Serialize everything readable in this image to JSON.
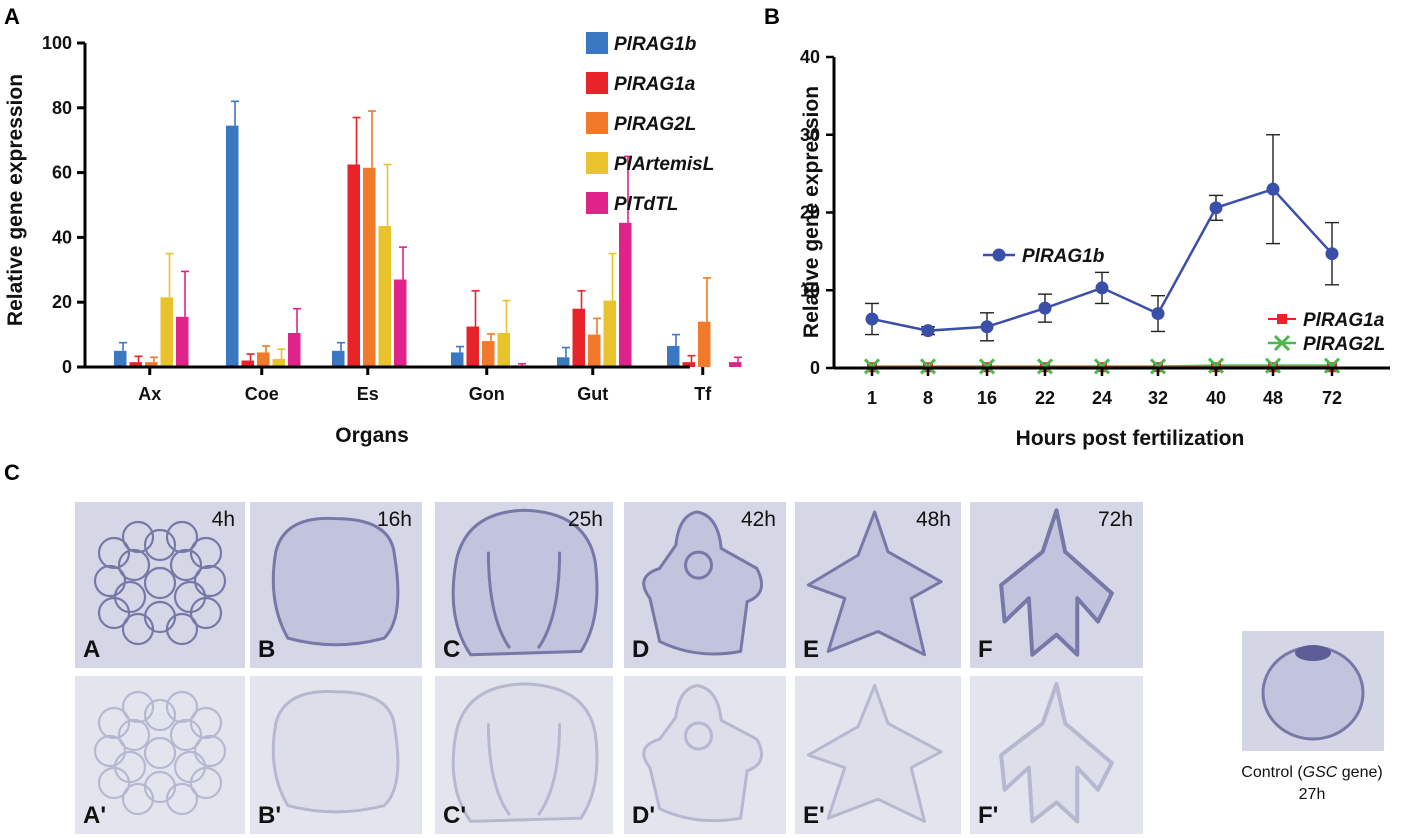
{
  "panels": {
    "A": "A",
    "B": "B",
    "C": "C"
  },
  "colors": {
    "blue": "#3b78c2",
    "red": "#e8232a",
    "orange": "#f07a2a",
    "yellow": "#e8c32c",
    "pink": "#e0238a",
    "lineBlue": "#3a4fa8",
    "green": "#4ab84a",
    "background_tile": "#d8d9e6"
  },
  "chart_data": [
    {
      "id": "A",
      "type": "bar",
      "xlabel": "Organs",
      "ylabel": "Relative gene expression",
      "ylim": [
        0,
        100
      ],
      "yticks": [
        "0",
        "20",
        "40",
        "60",
        "80",
        "100"
      ],
      "categories": [
        "Ax",
        "Coe",
        "Es",
        "Gon",
        "Gut",
        "Tf"
      ],
      "series": [
        {
          "name": "PlRAG1b",
          "color": "#3b78c2",
          "values": [
            5,
            74.5,
            5,
            4.5,
            3,
            6.5
          ],
          "errors": [
            2.5,
            7.5,
            2.5,
            1.8,
            3,
            3.5
          ]
        },
        {
          "name": "PlRAG1a",
          "color": "#e8232a",
          "values": [
            1.5,
            2,
            62.5,
            12.5,
            18,
            1.5
          ],
          "errors": [
            1.8,
            2,
            14.5,
            11,
            5.5,
            2
          ]
        },
        {
          "name": "PlRAG2L",
          "color": "#f07a2a",
          "values": [
            1.5,
            4.5,
            61.5,
            8,
            10,
            14
          ],
          "errors": [
            1.5,
            2,
            17.5,
            2.2,
            5,
            13.5
          ]
        },
        {
          "name": "PlArtemisL",
          "color": "#e8c32c",
          "values": [
            21.5,
            2.5,
            43.5,
            10.5,
            20.5,
            0
          ],
          "errors": [
            13.5,
            3,
            19,
            10,
            14.5,
            0
          ]
        },
        {
          "name": "PlTdTL",
          "color": "#e0238a",
          "values": [
            15.5,
            10.5,
            27,
            0.5,
            44.5,
            1.5
          ],
          "errors": [
            14,
            7.5,
            10,
            0.5,
            20.5,
            1.5
          ]
        }
      ],
      "legend_position": "top-right"
    },
    {
      "id": "B",
      "type": "line",
      "xlabel": "Hours post fertilization",
      "ylabel": "Relative gene expression",
      "ylim": [
        0,
        40
      ],
      "yticks": [
        "0",
        "10",
        "20",
        "30",
        "40"
      ],
      "categories": [
        "1",
        "8",
        "16",
        "22",
        "24",
        "32",
        "40",
        "48",
        "72"
      ],
      "series": [
        {
          "name": "PlRAG1b",
          "color": "#3a4fa8",
          "marker": "circle",
          "values": [
            6.3,
            4.8,
            5.3,
            7.7,
            10.3,
            7,
            20.6,
            23,
            14.7
          ],
          "errors": [
            2,
            0.5,
            1.8,
            1.8,
            2,
            2.3,
            1.6,
            7,
            4
          ]
        },
        {
          "name": "PlRAG1a",
          "color": "#e8232a",
          "marker": "square",
          "values": [
            0.1,
            0.1,
            0.1,
            0.1,
            0.1,
            0.1,
            0.1,
            0.1,
            0.1
          ]
        },
        {
          "name": "PlRAG2L",
          "color": "#4ab84a",
          "marker": "x",
          "values": [
            0.2,
            0.2,
            0.2,
            0.2,
            0.2,
            0.2,
            0.3,
            0.3,
            0.3
          ]
        }
      ]
    }
  ],
  "micrographs": {
    "top_row": [
      {
        "time": "4h",
        "label": "A"
      },
      {
        "time": "16h",
        "label": "B"
      },
      {
        "time": "25h",
        "label": "C"
      },
      {
        "time": "42h",
        "label": "D"
      },
      {
        "time": "48h",
        "label": "E"
      },
      {
        "time": "72h",
        "label": "F"
      }
    ],
    "bottom_row": [
      {
        "label": "A'"
      },
      {
        "label": "B'"
      },
      {
        "label": "C'"
      },
      {
        "label": "D'"
      },
      {
        "label": "E'"
      },
      {
        "label": "F'"
      }
    ],
    "control": {
      "caption_prefix": "Control (",
      "caption_gene": "GSC",
      "caption_suffix": " gene)",
      "caption_time": "27h"
    }
  }
}
